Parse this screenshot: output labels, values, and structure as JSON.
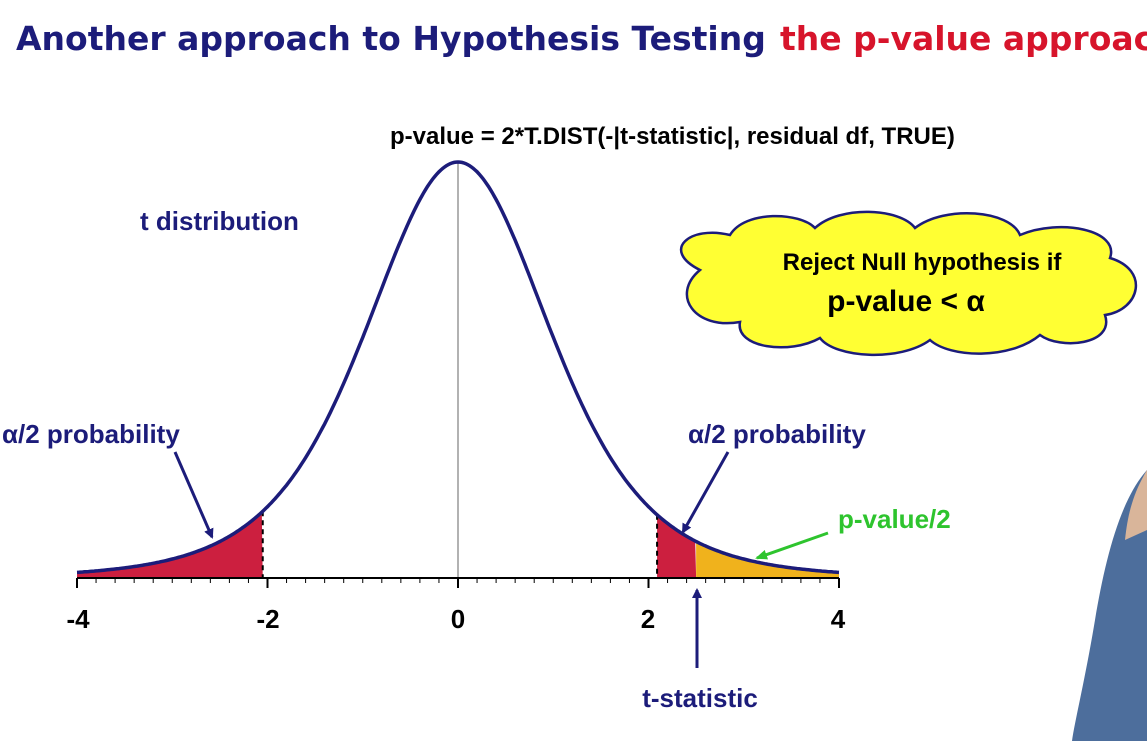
{
  "header": {
    "title": "Another approach to Hypothesis Testing",
    "subtitle": "the p-value approach"
  },
  "formula": "p-value = 2*T.DIST(-|t-statistic|,  residual df, TRUE)",
  "labels": {
    "distribution": "t distribution",
    "left_tail": "α/2 probability",
    "right_tail": "α/2 probability",
    "p_value_half": "p-value/2",
    "t_statistic": "t-statistic"
  },
  "callout": {
    "line1": "Reject Null hypothesis if",
    "line2": "p-value  <  α"
  },
  "axis": {
    "tick_labels": [
      "-4",
      "-2",
      "0",
      "2",
      "4"
    ]
  }
}
